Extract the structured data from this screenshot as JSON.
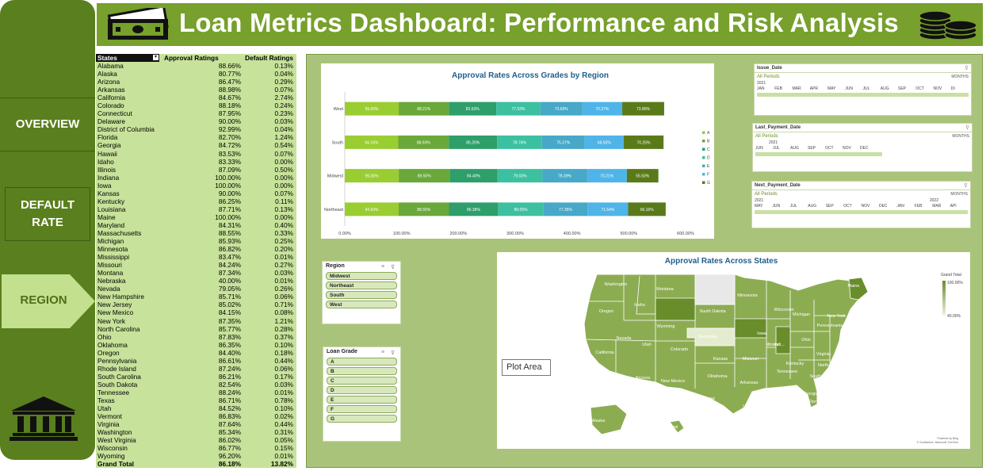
{
  "header": {
    "title": "Loan Metrics Dashboard: Performance and Risk Analysis"
  },
  "nav": {
    "overview": "OVERVIEW",
    "default_rate": "DEFAULT RATE",
    "region": "REGION"
  },
  "table": {
    "headers": {
      "states": "States",
      "approval": "Approval Ratings",
      "default": "Default Ratings"
    },
    "rows": [
      [
        "Alabama",
        "88.66%",
        "0.13%"
      ],
      [
        "Alaska",
        "80.77%",
        "0.04%"
      ],
      [
        "Arizona",
        "86.47%",
        "0.29%"
      ],
      [
        "Arkansas",
        "88.98%",
        "0.07%"
      ],
      [
        "California",
        "84.67%",
        "2.74%"
      ],
      [
        "Colorado",
        "88.18%",
        "0.24%"
      ],
      [
        "Connecticut",
        "87.95%",
        "0.23%"
      ],
      [
        "Delaware",
        "90.00%",
        "0.03%"
      ],
      [
        "District of Columbia",
        "92.99%",
        "0.04%"
      ],
      [
        "Florida",
        "82.70%",
        "1.24%"
      ],
      [
        "Georgia",
        "84.72%",
        "0.54%"
      ],
      [
        "Hawaii",
        "83.53%",
        "0.07%"
      ],
      [
        "Idaho",
        "83.33%",
        "0.00%"
      ],
      [
        "Illinois",
        "87.09%",
        "0.50%"
      ],
      [
        "Indiana",
        "100.00%",
        "0.00%"
      ],
      [
        "Iowa",
        "100.00%",
        "0.00%"
      ],
      [
        "Kansas",
        "90.00%",
        "0.07%"
      ],
      [
        "Kentucky",
        "86.25%",
        "0.11%"
      ],
      [
        "Louisiana",
        "87.71%",
        "0.13%"
      ],
      [
        "Maine",
        "100.00%",
        "0.00%"
      ],
      [
        "Maryland",
        "84.31%",
        "0.40%"
      ],
      [
        "Massachusetts",
        "88.55%",
        "0.33%"
      ],
      [
        "Michigan",
        "85.93%",
        "0.25%"
      ],
      [
        "Minnesota",
        "86.82%",
        "0.20%"
      ],
      [
        "Mississippi",
        "83.47%",
        "0.01%"
      ],
      [
        "Missouri",
        "84.24%",
        "0.27%"
      ],
      [
        "Montana",
        "87.34%",
        "0.03%"
      ],
      [
        "Nebraska",
        "40.00%",
        "0.01%"
      ],
      [
        "Nevada",
        "79.05%",
        "0.26%"
      ],
      [
        "New Hampshire",
        "85.71%",
        "0.06%"
      ],
      [
        "New Jersey",
        "85.02%",
        "0.71%"
      ],
      [
        "New Mexico",
        "84.15%",
        "0.08%"
      ],
      [
        "New York",
        "87.35%",
        "1.21%"
      ],
      [
        "North Carolina",
        "85.77%",
        "0.28%"
      ],
      [
        "Ohio",
        "87.83%",
        "0.37%"
      ],
      [
        "Oklahoma",
        "86.35%",
        "0.10%"
      ],
      [
        "Oregon",
        "84.40%",
        "0.18%"
      ],
      [
        "Pennsylvania",
        "86.61%",
        "0.44%"
      ],
      [
        "Rhode Island",
        "87.24%",
        "0.06%"
      ],
      [
        "South Carolina",
        "86.21%",
        "0.17%"
      ],
      [
        "South Dakota",
        "82.54%",
        "0.03%"
      ],
      [
        "Tennessee",
        "88.24%",
        "0.01%"
      ],
      [
        "Texas",
        "86.71%",
        "0.78%"
      ],
      [
        "Utah",
        "84.52%",
        "0.10%"
      ],
      [
        "Vermont",
        "86.83%",
        "0.02%"
      ],
      [
        "Virginia",
        "87.64%",
        "0.44%"
      ],
      [
        "Washington",
        "85.34%",
        "0.31%"
      ],
      [
        "West Virginia",
        "86.02%",
        "0.05%"
      ],
      [
        "Wisconsin",
        "86.77%",
        "0.15%"
      ],
      [
        "Wyoming",
        "96.20%",
        "0.01%"
      ]
    ],
    "total": [
      "Grand Total",
      "86.18%",
      "13.82%"
    ]
  },
  "chart_data": {
    "type": "bar",
    "stacked": true,
    "orientation": "horizontal",
    "title": "Approval Rates Across Grades by Region",
    "categories": [
      "Northeast",
      "Midwest",
      "South",
      "West"
    ],
    "x_ticks": [
      "0.00%",
      "100.00%",
      "200.00%",
      "300.00%",
      "400.00%",
      "500.00%",
      "600.00%"
    ],
    "xlim": [
      0,
      600
    ],
    "legend_position": "right",
    "series": [
      {
        "name": "A",
        "color": "#9acd32",
        "values": [
          94.93,
          95.06,
          94.16,
          95.0
        ]
      },
      {
        "name": "B",
        "color": "#6aa83a",
        "values": [
          88.55,
          89.5,
          88.93,
          88.21
        ]
      },
      {
        "name": "C",
        "color": "#2e9e6a",
        "values": [
          86.38,
          84.4,
          85.2,
          83.63
        ]
      },
      {
        "name": "D",
        "color": "#3cc0a0",
        "values": [
          80.05,
          79.03,
          78.74,
          77.53
        ]
      },
      {
        "name": "E",
        "color": "#47a8c8",
        "values": [
          77.35,
          78.39,
          75.37,
          73.69
        ]
      },
      {
        "name": "F",
        "color": "#4fb4e8",
        "values": [
          71.54,
          70.21,
          68.55,
          70.37
        ]
      },
      {
        "name": "G",
        "color": "#5a7a1a",
        "values": [
          66.16,
          55.5,
          70.25,
          73.8
        ]
      }
    ],
    "labels": {
      "Northeast": [
        "94.93%",
        "88.55%",
        "86.38%",
        "80.05%",
        "77.35%",
        "71.54%",
        "66.16%"
      ],
      "Midwest": [
        "95.06%",
        "89.50%",
        "84.40%",
        "79.03%",
        "78.39%",
        "70.21%",
        "55.50%"
      ],
      "South": [
        "94.16%",
        "88.93%",
        "85.20%",
        "78.74%",
        "75.37%",
        "68.55%",
        "70.25%"
      ],
      "West": [
        "95.00%",
        "88.21%",
        "83.63%",
        "77.53%",
        "73.69%",
        "70.37%",
        "73.80%"
      ]
    }
  },
  "slicers": {
    "region": {
      "title": "Region",
      "items": [
        "Midwest",
        "Northeast",
        "South",
        "West"
      ]
    },
    "grade": {
      "title": "Loan Grade",
      "items": [
        "A",
        "B",
        "C",
        "D",
        "E",
        "F",
        "G"
      ]
    }
  },
  "timelines": {
    "issue": {
      "title": "Issue_Date",
      "sub": "All Periods",
      "unit": "MONTHS",
      "years": [
        "2021"
      ],
      "months": [
        "JAN",
        "FEB",
        "MAR",
        "APR",
        "MAY",
        "JUN",
        "JUL",
        "AUG",
        "SEP",
        "OCT",
        "NOV",
        "DI"
      ]
    },
    "last": {
      "title": "Last_Payment_Date",
      "sub": "All Periods",
      "unit": "MONTHS",
      "years": [
        "2021"
      ],
      "months": [
        "JUN",
        "JUL",
        "AUG",
        "SEP",
        "OCT",
        "NOV",
        "DEC"
      ]
    },
    "next": {
      "title": "Next_Payment_Date",
      "sub": "All Periods",
      "unit": "MONTHS",
      "years": [
        "2021",
        "2022"
      ],
      "months": [
        "MAY",
        "JUN",
        "JUL",
        "AUG",
        "SEP",
        "OCT",
        "NOV",
        "DEC",
        "JAN",
        "FEB",
        "MAR",
        "API"
      ]
    }
  },
  "map": {
    "title": "Approval Rates Across States",
    "legend_title": "Grand Total",
    "legend_max": "100.00%",
    "legend_min": "40.00%",
    "credits": "Powered by Bing",
    "credits2": "© GeoNames, Microsoft, TomTom",
    "state_labels": [
      "Washington",
      "Oregon",
      "Idaho",
      "Montana",
      "Wyoming",
      "California",
      "Nevada",
      "Utah",
      "Colorado",
      "Arizona",
      "New Mexico",
      "Texas",
      "Oklahoma",
      "Kansas",
      "Nebraska",
      "South Dakota",
      "Minnesota",
      "Iowa",
      "Missouri",
      "Arkansas",
      "Louisiana",
      "Wisconsin",
      "Illinois",
      "Michigan",
      "Indi...",
      "Ohio",
      "Kentucky",
      "Tennessee",
      "Missi...",
      "Alabama",
      "Georgia",
      "Florida",
      "South...",
      "North...",
      "Virginia",
      "Pennsylvania",
      "New York",
      "Maine",
      "Alaska",
      "Hawaii"
    ]
  },
  "tooltip": {
    "label": "Plot Area"
  }
}
